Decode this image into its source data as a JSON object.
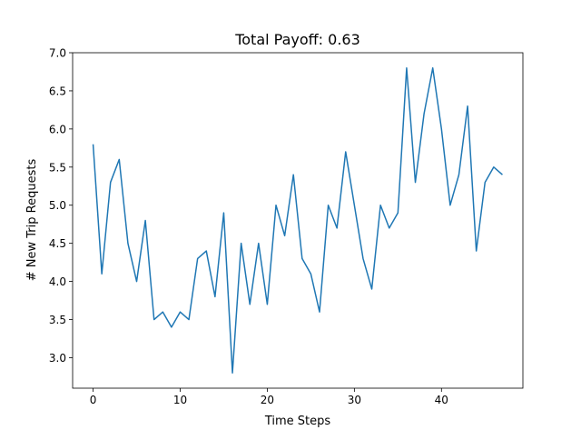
{
  "chart_data": {
    "type": "line",
    "title": "Total Payoff: 0.63",
    "xlabel": "Time Steps",
    "ylabel": "# New Trip Requests",
    "xlim": [
      -2.35,
      49.35
    ],
    "ylim": [
      2.6,
      7.0
    ],
    "x_ticks": [
      0,
      10,
      20,
      30,
      40
    ],
    "y_ticks": [
      3.0,
      3.5,
      4.0,
      4.5,
      5.0,
      5.5,
      6.0,
      6.5,
      7.0
    ],
    "x_tick_labels": [
      "0",
      "10",
      "20",
      "30",
      "40"
    ],
    "y_tick_labels": [
      "3.0",
      "3.5",
      "4.0",
      "4.5",
      "5.0",
      "5.5",
      "6.0",
      "6.5",
      "7.0"
    ],
    "grid": false,
    "legend": "none",
    "series": [
      {
        "color": "#1f77b4",
        "x": [
          0,
          1,
          2,
          3,
          4,
          5,
          6,
          7,
          8,
          9,
          10,
          11,
          12,
          13,
          14,
          15,
          16,
          17,
          18,
          19,
          20,
          21,
          22,
          23,
          24,
          25,
          26,
          27,
          28,
          29,
          30,
          31,
          32,
          33,
          34,
          35,
          36,
          37,
          38,
          39,
          40,
          41,
          42,
          43,
          44,
          45,
          46,
          47
        ],
        "values": [
          5.8,
          4.1,
          5.3,
          5.6,
          4.5,
          4.0,
          4.8,
          3.5,
          3.6,
          3.4,
          3.6,
          3.5,
          4.3,
          4.4,
          3.8,
          4.9,
          2.8,
          4.5,
          3.7,
          4.5,
          3.7,
          5.0,
          4.6,
          5.4,
          4.3,
          4.1,
          3.6,
          5.0,
          4.7,
          5.7,
          5.0,
          4.3,
          3.9,
          5.0,
          4.7,
          4.9,
          6.8,
          5.3,
          6.2,
          6.8,
          6.0,
          5.0,
          5.4,
          6.3,
          4.4,
          5.3,
          5.5,
          5.4
        ]
      }
    ]
  }
}
